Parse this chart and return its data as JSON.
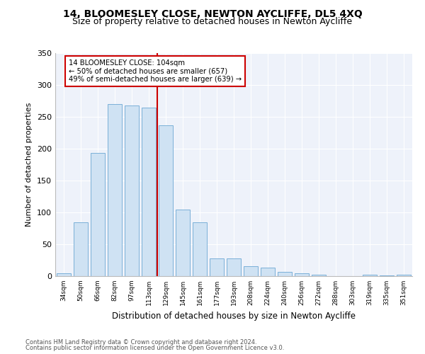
{
  "title": "14, BLOOMESLEY CLOSE, NEWTON AYCLIFFE, DL5 4XQ",
  "subtitle": "Size of property relative to detached houses in Newton Aycliffe",
  "xlabel": "Distribution of detached houses by size in Newton Aycliffe",
  "ylabel": "Number of detached properties",
  "categories": [
    "34sqm",
    "50sqm",
    "66sqm",
    "82sqm",
    "97sqm",
    "113sqm",
    "129sqm",
    "145sqm",
    "161sqm",
    "177sqm",
    "193sqm",
    "208sqm",
    "224sqm",
    "240sqm",
    "256sqm",
    "272sqm",
    "288sqm",
    "303sqm",
    "319sqm",
    "335sqm",
    "351sqm"
  ],
  "values": [
    5,
    84,
    193,
    270,
    268,
    265,
    237,
    104,
    84,
    28,
    28,
    16,
    13,
    7,
    5,
    2,
    0,
    0,
    2,
    1,
    2
  ],
  "bar_color": "#cfe2f3",
  "bar_edge_color": "#7ab0d8",
  "vline_x": 5.5,
  "vline_color": "#cc0000",
  "annotation_text": "14 BLOOMESLEY CLOSE: 104sqm\n← 50% of detached houses are smaller (657)\n49% of semi-detached houses are larger (639) →",
  "annotation_box_color": "#ffffff",
  "annotation_box_edge_color": "#cc0000",
  "ylim": [
    0,
    350
  ],
  "yticks": [
    0,
    50,
    100,
    150,
    200,
    250,
    300,
    350
  ],
  "footer_line1": "Contains HM Land Registry data © Crown copyright and database right 2024.",
  "footer_line2": "Contains public sector information licensed under the Open Government Licence v3.0.",
  "plot_bg_color": "#eef2fa",
  "grid_color": "#ffffff",
  "title_fontsize": 10,
  "subtitle_fontsize": 9
}
